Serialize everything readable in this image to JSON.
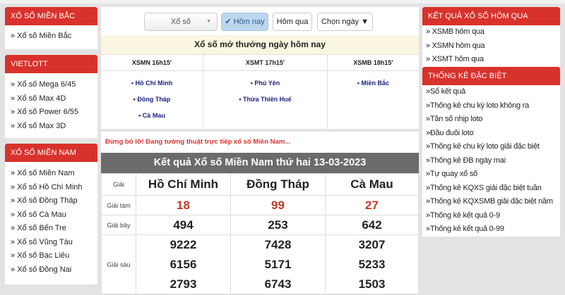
{
  "left": {
    "sections": [
      {
        "title": "XỔ SỐ MIỀN BẮC",
        "items": [
          "» Xổ số Miền Bắc"
        ]
      },
      {
        "title": "VIETLOTT",
        "items": [
          "» Xổ số Mega 6/45",
          "» Xổ số Max 4D",
          "» Xổ số Power 6/55",
          "» Xổ số Max 3D"
        ]
      },
      {
        "title": "XỔ SỐ MIỀN NAM",
        "items": [
          "» Xổ số Miền Nam",
          "» Xổ số Hồ Chí Minh",
          "» Xổ số Đồng Tháp",
          "» Xổ số Cà Mau",
          "» Xổ số Bến Tre",
          "» Xổ số Vũng Tàu",
          "» Xổ số Bạc Liêu",
          "» Xổ số Đồng Nai"
        ]
      }
    ]
  },
  "toolbar": {
    "select_value": "Xổ số",
    "today": "✔ Hôm nay",
    "yesterday": "Hôm qua",
    "pick_date": "Chọn ngày ▼"
  },
  "today": {
    "title": "Xổ số mở thưởng ngày hôm nay",
    "columns": [
      {
        "header": "XSMN 16h15'",
        "provinces": [
          "• Hồ Chí Minh",
          "• Đồng Tháp",
          "• Cà Mau"
        ]
      },
      {
        "header": "XSMT 17h15'",
        "provinces": [
          "• Phú Yên",
          "• Thừa Thiên Huế"
        ]
      },
      {
        "header": "XSMB 18h15'",
        "provinces": [
          "• Miền Bắc"
        ]
      }
    ]
  },
  "live_notice": "Đừng bỏ lỡ! Đang tường thuật trực tiếp xổ số Miền Nam...",
  "results": {
    "title": "Kết quả Xổ số Miền Nam thứ hai 13-03-2023",
    "label_header": "Giải",
    "provinces": [
      "Hồ Chí Minh",
      "Đồng Tháp",
      "Cà Mau"
    ],
    "rows": [
      {
        "label": "Giải tám",
        "values": [
          [
            "18"
          ],
          [
            "99"
          ],
          [
            "27"
          ]
        ]
      },
      {
        "label": "Giải bảy",
        "values": [
          [
            "494"
          ],
          [
            "253"
          ],
          [
            "642"
          ]
        ]
      },
      {
        "label": "Giải sáu",
        "values": [
          [
            "9222",
            "6156",
            "2793"
          ],
          [
            "7428",
            "5171",
            "6743"
          ],
          [
            "3207",
            "5233",
            "1503"
          ]
        ]
      }
    ]
  },
  "right": {
    "sections": [
      {
        "title": "KẾT QUẢ XỔ SỐ HÔM QUA",
        "items": [
          "» XSMB hôm qua",
          "» XSMN hôm qua",
          "» XSMT hôm qua"
        ]
      },
      {
        "title": "THỐNG KÊ ĐẶC BIỆT",
        "items": [
          "»Sổ kết quả",
          "»Thống kê chu kỳ loto không ra",
          "»Tần số nhịp loto",
          "»Đầu đuôi loto",
          "»Thống kê chu kỳ loto giải đặc biệt",
          "»Thống kê ĐB ngày mai",
          "»Tự quay xổ số",
          "»Thống kê KQXS giải đặc biệt tuần",
          "»Thống kê KQXSMB giải đặc biệt năm",
          "»Thống kê kết quả 0-9",
          "»Thống kê kết quả 0-99"
        ]
      }
    ]
  },
  "colors": {
    "brand_red": "#d9322c",
    "header_gray": "#6b6b6b",
    "highlight_yellow": "#fbf6e0",
    "prize_red": "#c0392b"
  }
}
